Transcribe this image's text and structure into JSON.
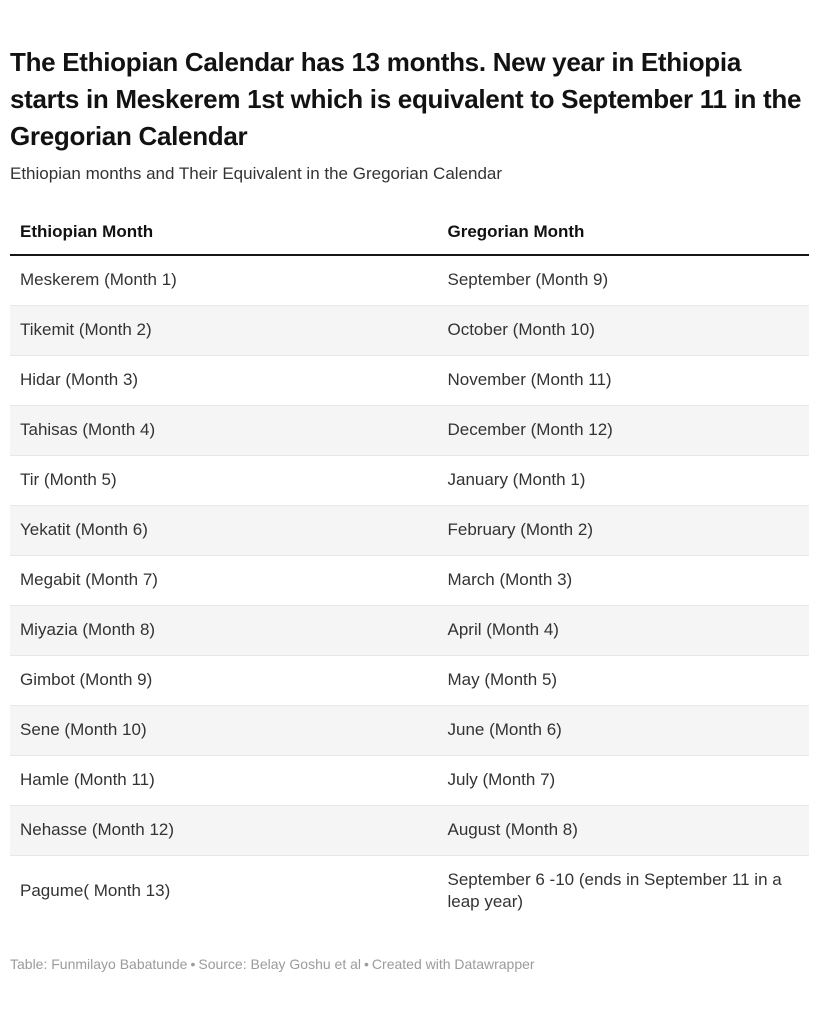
{
  "header": {
    "title": "The Ethiopian Calendar has 13 months. New year in Ethiopia starts in Meskerem 1st which is equivalent to September 11 in the Gregorian Calendar",
    "subtitle": "Ethiopian months and Their Equivalent in the Gregorian Calendar"
  },
  "chart_data": {
    "type": "table",
    "title": "The Ethiopian Calendar has 13 months. New year in Ethiopia starts in Meskerem 1st which is equivalent to September 11 in the Gregorian Calendar",
    "subtitle": "Ethiopian months and Their Equivalent in the Gregorian Calendar",
    "columns": [
      "Ethiopian Month",
      "Gregorian Month"
    ],
    "rows": [
      [
        "Meskerem (Month 1)",
        "September (Month 9)"
      ],
      [
        "Tikemit (Month 2)",
        "October (Month 10)"
      ],
      [
        "Hidar (Month 3)",
        "November (Month 11)"
      ],
      [
        "Tahisas (Month 4)",
        "December (Month 12)"
      ],
      [
        "Tir (Month 5)",
        "January (Month 1)"
      ],
      [
        "Yekatit (Month 6)",
        "February (Month 2)"
      ],
      [
        "Megabit (Month 7)",
        "March (Month 3)"
      ],
      [
        "Miyazia (Month 8)",
        "April (Month 4)"
      ],
      [
        "Gimbot (Month 9)",
        "May (Month 5)"
      ],
      [
        "Sene (Month 10)",
        "June (Month 6)"
      ],
      [
        "Hamle (Month 11)",
        "July (Month 7)"
      ],
      [
        "Nehasse (Month 12)",
        "August (Month 8)"
      ],
      [
        "Pagume( Month 13)",
        "September 6 -10 (ends in September 11 in a leap year)"
      ]
    ],
    "layout_hints": {
      "striped_rows": true,
      "stripe_on": "even",
      "header_rule": true
    }
  },
  "footer": {
    "table_label": "Table: ",
    "table_credit": "Funmilayo Babatunde",
    "separator": "•",
    "source_label": "Source: ",
    "source": "Belay Goshu et al",
    "created": "Created with Datawrapper"
  },
  "colors": {
    "background": "#ffffff",
    "title_text": "#121212",
    "body_text": "#333333",
    "stripe": "#f5f5f5",
    "row_divider": "#e8e8e8",
    "header_rule": "#161616",
    "footer_text": "#9b9b9b"
  }
}
